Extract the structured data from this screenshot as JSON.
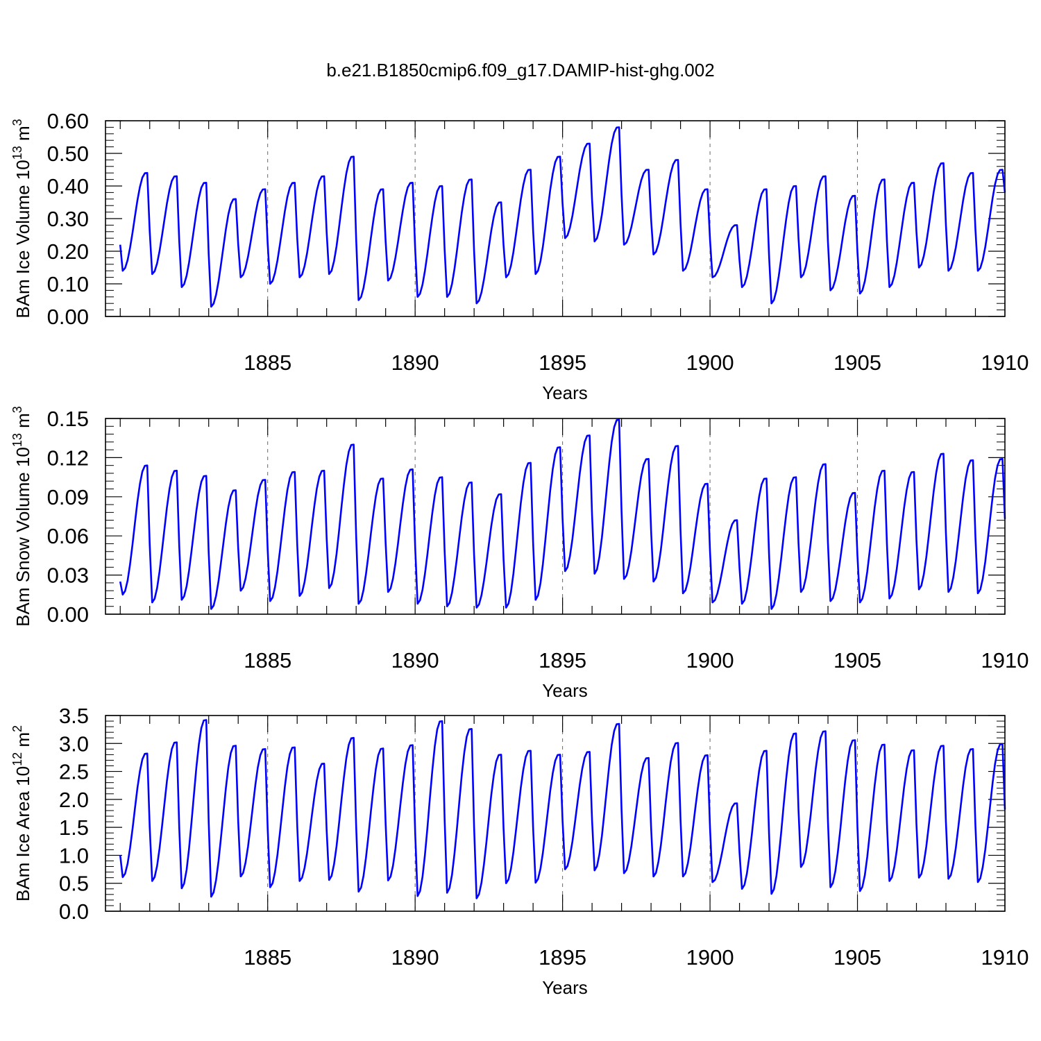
{
  "title": "b.e21.B1850cmip6.f09_g17.DAMIP-hist-ghg.002",
  "line_color": "#0000ff",
  "chart_data": [
    {
      "type": "line",
      "ylabel_main": "BAm Ice Volume 10",
      "ylabel_exp": "13",
      "ylabel_unit": " m",
      "ylabel_unit_exp": "3",
      "xlabel": "Years",
      "xlim": [
        1879.5,
        1910
      ],
      "ylim": [
        0,
        0.6
      ],
      "yticks": [
        0,
        0.1,
        0.2,
        0.3,
        0.4,
        0.5,
        0.6
      ],
      "ytick_labels": [
        "0.00",
        "0.10",
        "0.20",
        "0.30",
        "0.40",
        "0.50",
        "0.60"
      ],
      "xticks": [
        1885,
        1890,
        1895,
        1900,
        1905,
        1910
      ],
      "xtick_labels": [
        "1885",
        "1890",
        "1895",
        "1900",
        "1905",
        "1910"
      ],
      "annual_max": [
        0.44,
        0.43,
        0.41,
        0.36,
        0.39,
        0.41,
        0.43,
        0.49,
        0.39,
        0.41,
        0.4,
        0.42,
        0.35,
        0.45,
        0.49,
        0.53,
        0.58,
        0.45,
        0.48,
        0.39,
        0.28,
        0.39,
        0.4,
        0.43,
        0.37,
        0.42,
        0.41,
        0.47,
        0.44,
        0.45
      ],
      "annual_min": [
        0.14,
        0.13,
        0.09,
        0.03,
        0.12,
        0.1,
        0.12,
        0.13,
        0.05,
        0.11,
        0.06,
        0.06,
        0.04,
        0.12,
        0.13,
        0.24,
        0.23,
        0.22,
        0.19,
        0.14,
        0.12,
        0.09,
        0.04,
        0.12,
        0.08,
        0.07,
        0.09,
        0.15,
        0.14,
        0.14
      ],
      "start_value": 0.22,
      "end_value": 0.38,
      "series": [
        {
          "name": "BAm Ice Volume",
          "x": "monthly 1880-1910",
          "values": "see annual_max / annual_min"
        }
      ]
    },
    {
      "type": "line",
      "ylabel_main": "BAm Snow Volume 10",
      "ylabel_exp": "13",
      "ylabel_unit": " m",
      "ylabel_unit_exp": "3",
      "xlabel": "Years",
      "xlim": [
        1879.5,
        1910
      ],
      "ylim": [
        0,
        0.15
      ],
      "yticks": [
        0,
        0.03,
        0.06,
        0.09,
        0.12,
        0.15
      ],
      "ytick_labels": [
        "0.00",
        "0.03",
        "0.06",
        "0.09",
        "0.12",
        "0.15"
      ],
      "xticks": [
        1885,
        1890,
        1895,
        1900,
        1905,
        1910
      ],
      "xtick_labels": [
        "1885",
        "1890",
        "1895",
        "1900",
        "1905",
        "1910"
      ],
      "annual_max": [
        0.114,
        0.11,
        0.106,
        0.095,
        0.103,
        0.109,
        0.11,
        0.13,
        0.104,
        0.111,
        0.105,
        0.101,
        0.092,
        0.116,
        0.128,
        0.137,
        0.149,
        0.119,
        0.129,
        0.1,
        0.072,
        0.104,
        0.105,
        0.115,
        0.093,
        0.11,
        0.109,
        0.123,
        0.118,
        0.119
      ],
      "annual_min": [
        0.015,
        0.009,
        0.011,
        0.004,
        0.018,
        0.01,
        0.014,
        0.02,
        0.008,
        0.017,
        0.008,
        0.006,
        0.005,
        0.005,
        0.011,
        0.033,
        0.031,
        0.027,
        0.025,
        0.016,
        0.009,
        0.008,
        0.004,
        0.017,
        0.01,
        0.009,
        0.012,
        0.019,
        0.017,
        0.016
      ],
      "start_value": 0.025,
      "end_value": 0.073,
      "series": [
        {
          "name": "BAm Snow Volume",
          "x": "monthly 1880-1910",
          "values": "see annual_max / annual_min"
        }
      ]
    },
    {
      "type": "line",
      "ylabel_main": "BAm Ice Area 10",
      "ylabel_exp": "12",
      "ylabel_unit": " m",
      "ylabel_unit_exp": "2",
      "xlabel": "Years",
      "xlim": [
        1879.5,
        1910
      ],
      "ylim": [
        0,
        3.5
      ],
      "yticks": [
        0,
        0.5,
        1.0,
        1.5,
        2.0,
        2.5,
        3.0,
        3.5
      ],
      "ytick_labels": [
        "0.0",
        "0.5",
        "1.0",
        "1.5",
        "2.0",
        "2.5",
        "3.0",
        "3.5"
      ],
      "xticks": [
        1885,
        1890,
        1895,
        1900,
        1905,
        1910
      ],
      "xtick_labels": [
        "1885",
        "1890",
        "1895",
        "1900",
        "1905",
        "1910"
      ],
      "annual_max": [
        2.82,
        3.02,
        3.42,
        2.96,
        2.9,
        2.93,
        2.64,
        3.1,
        2.91,
        2.97,
        3.4,
        3.26,
        2.8,
        2.87,
        2.8,
        2.85,
        3.35,
        2.74,
        3.01,
        2.79,
        1.93,
        2.87,
        3.18,
        3.22,
        3.06,
        2.98,
        2.88,
        2.96,
        2.9,
        2.99
      ],
      "annual_min": [
        0.61,
        0.54,
        0.41,
        0.26,
        0.62,
        0.43,
        0.54,
        0.56,
        0.35,
        0.55,
        0.27,
        0.33,
        0.23,
        0.5,
        0.51,
        0.75,
        0.73,
        0.68,
        0.62,
        0.62,
        0.52,
        0.4,
        0.31,
        0.79,
        0.43,
        0.36,
        0.54,
        0.6,
        0.58,
        0.52
      ],
      "start_value": 1.0,
      "end_value": 1.82,
      "series": [
        {
          "name": "BAm Ice Area",
          "x": "monthly 1880-1910",
          "values": "see annual_max / annual_min"
        }
      ]
    }
  ]
}
